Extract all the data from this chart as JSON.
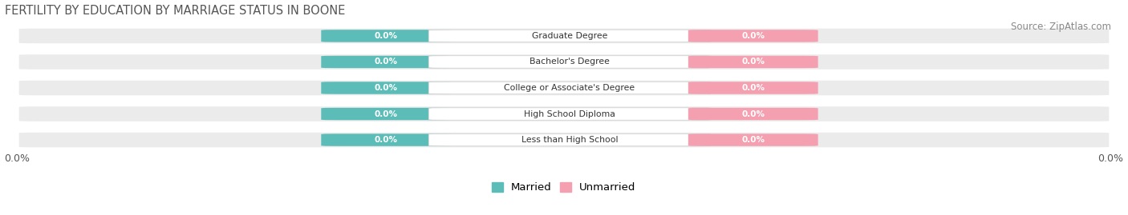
{
  "title": "FERTILITY BY EDUCATION BY MARRIAGE STATUS IN BOONE",
  "source": "Source: ZipAtlas.com",
  "categories": [
    "Less than High School",
    "High School Diploma",
    "College or Associate's Degree",
    "Bachelor's Degree",
    "Graduate Degree"
  ],
  "married_values": [
    0.0,
    0.0,
    0.0,
    0.0,
    0.0
  ],
  "unmarried_values": [
    0.0,
    0.0,
    0.0,
    0.0,
    0.0
  ],
  "married_color": "#5bbcb8",
  "unmarried_color": "#f4a0b0",
  "row_bg_color": "#ebebeb",
  "title_color": "#555555",
  "source_color": "#888888",
  "legend_married": "Married",
  "legend_unmarried": "Unmarried",
  "figsize": [
    14.06,
    2.69
  ],
  "dpi": 100
}
